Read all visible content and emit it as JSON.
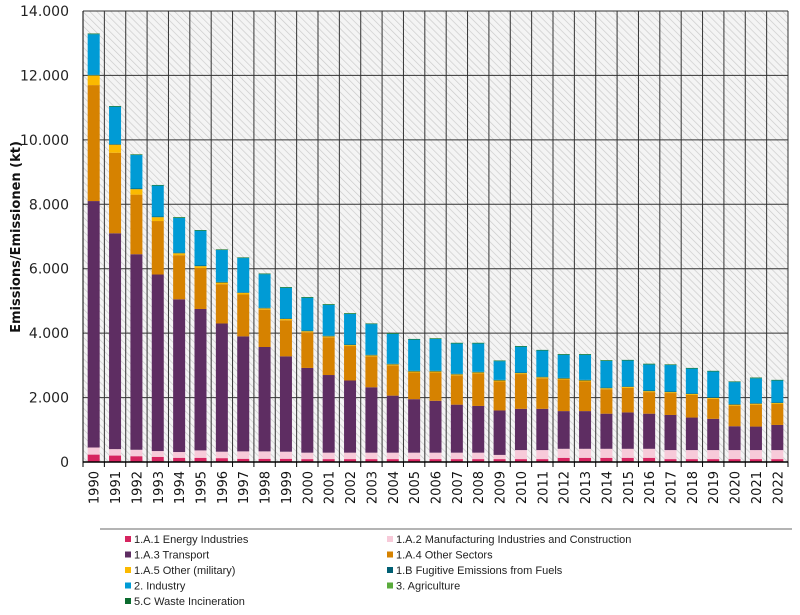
{
  "chart_data": {
    "type": "bar",
    "stacked": true,
    "title": "",
    "xlabel": "",
    "ylabel": "Emissions/Emissionen (kt)",
    "ylim": [
      0,
      14000
    ],
    "yticks": [
      0,
      2000,
      4000,
      6000,
      8000,
      10000,
      12000,
      14000
    ],
    "ytick_labels": [
      "0",
      "2.000",
      "4.000",
      "6.000",
      "8.000",
      "10.000",
      "12.000",
      "14.000"
    ],
    "grid": true,
    "legend_position": "bottom",
    "categories": [
      "1990",
      "1991",
      "1992",
      "1993",
      "1994",
      "1995",
      "1996",
      "1997",
      "1998",
      "1999",
      "2000",
      "2001",
      "2002",
      "2003",
      "2004",
      "2005",
      "2006",
      "2007",
      "2008",
      "2009",
      "2010",
      "2011",
      "2012",
      "2013",
      "2014",
      "2015",
      "2016",
      "2017",
      "2018",
      "2019",
      "2020",
      "2021",
      "2022"
    ],
    "series": [
      {
        "name": "1.A.1 Energy Industries",
        "color": "#d6245f",
        "values": [
          230,
          200,
          180,
          160,
          130,
          130,
          120,
          100,
          100,
          100,
          90,
          90,
          90,
          90,
          90,
          90,
          90,
          90,
          90,
          90,
          90,
          90,
          130,
          130,
          130,
          130,
          130,
          90,
          90,
          90,
          90,
          90,
          90
        ]
      },
      {
        "name": "1.A.2 Manufacturing Industries and Construction",
        "color": "#f7cad9",
        "values": [
          220,
          200,
          200,
          180,
          180,
          230,
          200,
          230,
          230,
          220,
          200,
          200,
          200,
          200,
          200,
          200,
          200,
          200,
          200,
          130,
          280,
          280,
          280,
          280,
          280,
          280,
          280,
          280,
          280,
          280,
          280,
          280,
          280
        ]
      },
      {
        "name": "1.A.3 Transport",
        "color": "#5e2d62",
        "values": [
          7650,
          6700,
          6070,
          5480,
          4740,
          4390,
          3980,
          3570,
          3240,
          2960,
          2630,
          2410,
          2240,
          2030,
          1770,
          1660,
          1610,
          1490,
          1450,
          1380,
          1280,
          1280,
          1170,
          1170,
          1090,
          1130,
          1090,
          1090,
          1010,
          970,
          740,
          730,
          780
        ]
      },
      {
        "name": "1.A.4 Other Sectors",
        "color": "#d68200",
        "values": [
          3600,
          2500,
          1850,
          1660,
          1370,
          1270,
          1220,
          1300,
          1160,
          1120,
          1110,
          1170,
          1070,
          960,
          940,
          830,
          880,
          910,
          1010,
          900,
          1080,
          950,
          980,
          920,
          760,
          760,
          670,
          680,
          700,
          620,
          640,
          680,
          650
        ]
      },
      {
        "name": "1.A.5 Other (military)",
        "color": "#fbb900",
        "values": [
          300,
          250,
          170,
          120,
          60,
          60,
          50,
          50,
          40,
          40,
          30,
          30,
          30,
          30,
          30,
          30,
          30,
          30,
          30,
          30,
          30,
          30,
          30,
          30,
          30,
          30,
          30,
          30,
          30,
          30,
          30,
          30,
          30
        ]
      },
      {
        "name": "1.B Fugitive Emissions from Fuels",
        "color": "#005f73",
        "values": [
          20,
          20,
          20,
          20,
          20,
          20,
          20,
          20,
          20,
          20,
          20,
          20,
          20,
          20,
          20,
          20,
          20,
          20,
          20,
          20,
          20,
          20,
          20,
          20,
          20,
          20,
          20,
          20,
          20,
          20,
          20,
          20,
          20
        ]
      },
      {
        "name": "2. Industry",
        "color": "#009bd5",
        "values": [
          1265,
          1165,
          1045,
          965,
          1085,
          1085,
          995,
          1065,
          1045,
          955,
          1025,
          965,
          955,
          955,
          935,
          975,
          995,
          945,
          885,
          585,
          805,
          815,
          725,
          785,
          835,
          805,
          815,
          825,
          775,
          805,
          685,
          775,
          685
        ]
      },
      {
        "name": "3. Agriculture",
        "color": "#5aab3c",
        "values": [
          10,
          10,
          10,
          10,
          10,
          10,
          10,
          10,
          10,
          10,
          10,
          10,
          10,
          10,
          10,
          10,
          10,
          10,
          10,
          10,
          10,
          10,
          10,
          10,
          10,
          10,
          10,
          10,
          10,
          10,
          10,
          10,
          10
        ]
      },
      {
        "name": "5.C Waste Incineration",
        "color": "#0b6b2e",
        "values": [
          5,
          5,
          5,
          5,
          5,
          5,
          5,
          5,
          5,
          5,
          5,
          5,
          5,
          5,
          5,
          5,
          5,
          5,
          5,
          5,
          5,
          5,
          5,
          5,
          5,
          5,
          5,
          5,
          5,
          5,
          5,
          5,
          5
        ]
      }
    ]
  }
}
